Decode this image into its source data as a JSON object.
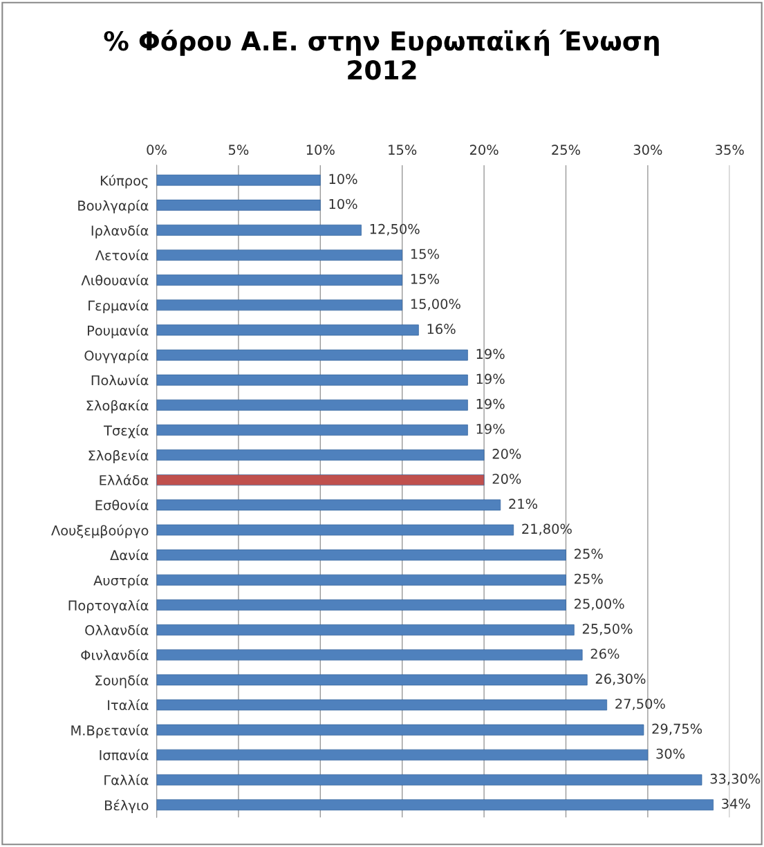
{
  "chart_data": {
    "type": "bar",
    "orientation": "horizontal",
    "title": "% Φόρου Α.Ε. στην Ευρωπαϊκή Ένωση\n2012",
    "categories": [
      "Κύπρος",
      "Βουλγαρία",
      "Ιρλανδία",
      "Λετονία",
      "Λιθουανία",
      "Γερμανία",
      "Ρουμανία",
      "Ουγγαρία",
      "Πολωνία",
      "Σλοβακία",
      "Τσεχία",
      "Σλοβενία",
      "Ελλάδα",
      "Εσθονία",
      "Λουξεμβούργο",
      "Δανία",
      "Αυστρία",
      "Πορτογαλία",
      "Ολλανδία",
      "Φινλανδία",
      "Σουηδία",
      "Ιταλία",
      "Μ.Βρετανία",
      "Ισπανία",
      "Γαλλία",
      "Βέλγιο"
    ],
    "values": [
      10,
      10,
      12.5,
      15,
      15,
      15,
      16,
      19,
      19,
      19,
      19,
      20,
      20,
      21,
      21.8,
      25,
      25,
      25,
      25.5,
      26,
      26.3,
      27.5,
      29.75,
      30,
      33.3,
      34
    ],
    "value_labels": [
      "10%",
      "10%",
      "12,50%",
      "15%",
      "15%",
      "15,00%",
      "16%",
      "19%",
      "19%",
      "19%",
      "19%",
      "20%",
      "20%",
      "21%",
      "21,80%",
      "25%",
      "25%",
      "25,00%",
      "25,50%",
      "26%",
      "26,30%",
      "27,50%",
      "29,75%",
      "30%",
      "33,30%",
      "34%"
    ],
    "colors": [
      "#4f81bd",
      "#4f81bd",
      "#4f81bd",
      "#4f81bd",
      "#4f81bd",
      "#4f81bd",
      "#4f81bd",
      "#4f81bd",
      "#4f81bd",
      "#4f81bd",
      "#4f81bd",
      "#4f81bd",
      "#c0504d",
      "#4f81bd",
      "#4f81bd",
      "#4f81bd",
      "#4f81bd",
      "#4f81bd",
      "#4f81bd",
      "#4f81bd",
      "#4f81bd",
      "#4f81bd",
      "#4f81bd",
      "#4f81bd",
      "#4f81bd",
      "#4f81bd"
    ],
    "xlim": [
      0,
      35
    ],
    "xticks": [
      {
        "value": 0,
        "label": "0%"
      },
      {
        "value": 5,
        "label": "5%"
      },
      {
        "value": 10,
        "label": "10%"
      },
      {
        "value": 15,
        "label": "15%"
      },
      {
        "value": 20,
        "label": "20%"
      },
      {
        "value": 25,
        "label": "25%"
      },
      {
        "value": 30,
        "label": "30%"
      },
      {
        "value": 35,
        "label": "35%"
      }
    ],
    "grid": "x",
    "legend": false
  }
}
